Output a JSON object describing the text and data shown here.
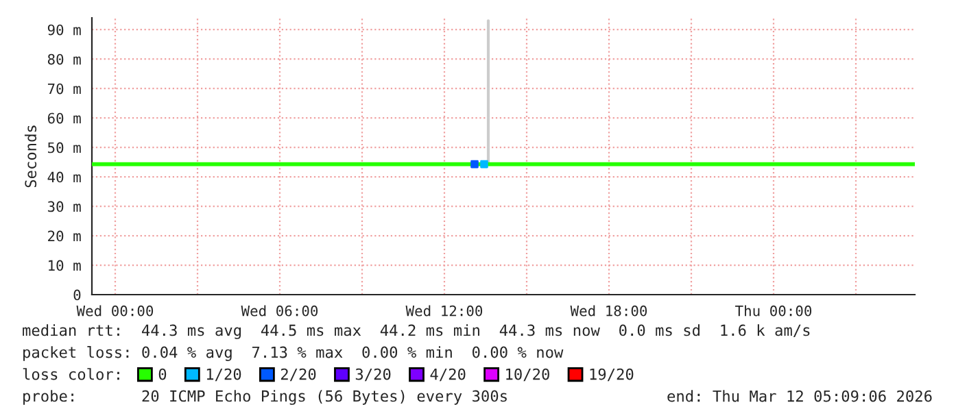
{
  "chart_data": {
    "type": "line",
    "ylabel": "Seconds",
    "xlim": [
      "2026-03-10T23:09",
      "2026-03-12T05:09"
    ],
    "ylim": [
      0,
      94
    ],
    "xticks": [
      {
        "value": "2026-03-11T00:00",
        "label": "Wed 00:00"
      },
      {
        "value": "2026-03-11T03:00",
        "label": null
      },
      {
        "value": "2026-03-11T06:00",
        "label": "Wed 06:00"
      },
      {
        "value": "2026-03-11T09:00",
        "label": null
      },
      {
        "value": "2026-03-11T12:00",
        "label": "Wed 12:00"
      },
      {
        "value": "2026-03-11T15:00",
        "label": null
      },
      {
        "value": "2026-03-11T18:00",
        "label": "Wed 18:00"
      },
      {
        "value": "2026-03-11T21:00",
        "label": null
      },
      {
        "value": "2026-03-12T00:00",
        "label": "Thu 00:00"
      },
      {
        "value": "2026-03-12T03:00",
        "label": null
      }
    ],
    "yticks": [
      0,
      {
        "value": 10,
        "label": "10 m"
      },
      {
        "value": 20,
        "label": "20 m"
      },
      {
        "value": 30,
        "label": "30 m"
      },
      {
        "value": 40,
        "label": "40 m"
      },
      {
        "value": 50,
        "label": "50 m"
      },
      {
        "value": 60,
        "label": "60 m"
      },
      {
        "value": 70,
        "label": "70 m"
      },
      {
        "value": 80,
        "label": "80 m"
      },
      {
        "value": 90,
        "label": "90 m"
      }
    ],
    "grid": true,
    "legend": "bottom",
    "legend_title": "loss color:",
    "series": [
      {
        "color": "#cccccc",
        "x": [
          "2026-03-11T13:36",
          "2026-03-11T13:36"
        ],
        "values": [
          44.3,
          93
        ]
      },
      {
        "name": "0",
        "color": "#26ff00",
        "x": [
          "2026-03-10T23:09",
          "2026-03-12T05:09"
        ],
        "values": [
          44.3,
          44.3
        ]
      },
      {
        "type": "scatter",
        "name": "1/20",
        "color": "#00b8ff",
        "x": [
          "2026-03-11T13:27"
        ],
        "values": [
          44.3
        ]
      },
      {
        "type": "scatter",
        "name": "2/20",
        "color": "#0059ff",
        "x": [
          "2026-03-11T13:06"
        ],
        "values": [
          44.3
        ]
      },
      {
        "type": "scatter",
        "name": "3/20",
        "color": "#5e00ff"
      },
      {
        "type": "scatter",
        "name": "4/20",
        "color": "#7e00ff"
      },
      {
        "type": "scatter",
        "name": "10/20",
        "color": "#dd00ff"
      },
      {
        "type": "scatter",
        "name": "19/20",
        "color": "#ff0000"
      }
    ],
    "annotations": [
      "median rtt:  44.3 ms avg  44.5 ms max  44.2 ms min  44.3 ms now  0.0 ms sd  1.6 k am/s",
      "packet loss: 0.04 % avg  7.13 % max  0.00 % min  0.00 % now",
      "probe:       20 ICMP Echo Pings (56 Bytes) every 300s",
      "end: Thu Mar 12 05:09:06 2026"
    ]
  }
}
